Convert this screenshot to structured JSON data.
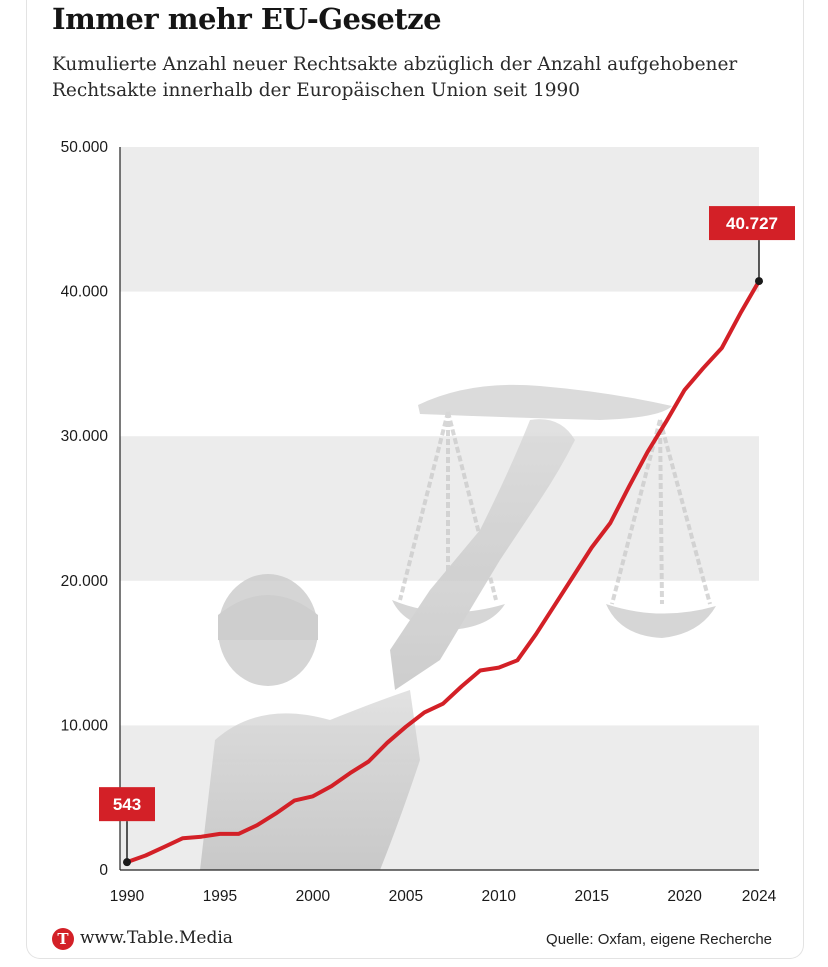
{
  "header": {
    "title": "Immer mehr EU-Gesetze",
    "subtitle": "Kumulierte Anzahl neuer Rechtsakte abzüglich der Anzahl aufgehobener Rechtsakte innerhalb der Europäischen Union seit 1990"
  },
  "footer": {
    "logo_letter": "T",
    "url": "www.Table.Media",
    "source": "Quelle: Oxfam, eigene Recherche"
  },
  "colors": {
    "line": "#d32027",
    "band": "#ececec",
    "axis": "#222222",
    "label_bg": "#d32027"
  },
  "chart_data": {
    "type": "line",
    "title": "Immer mehr EU-Gesetze",
    "xlabel": "",
    "ylabel": "",
    "xlim": [
      1990,
      2024
    ],
    "ylim": [
      0,
      50000
    ],
    "grid": "alternating horizontal bands",
    "x_ticks": [
      1990,
      1995,
      2000,
      2005,
      2010,
      2015,
      2020,
      2024
    ],
    "x_tick_labels": [
      "1990",
      "1995",
      "2000",
      "2005",
      "2010",
      "2015",
      "2020",
      "2024"
    ],
    "y_ticks": [
      0,
      10000,
      20000,
      30000,
      40000,
      50000
    ],
    "y_tick_labels": [
      "0",
      "10.000",
      "20.000",
      "30.000",
      "40.000",
      "50.000"
    ],
    "series": [
      {
        "x": [
          1990,
          1991,
          1992,
          1993,
          1994,
          1995,
          1996,
          1997,
          1998,
          1999,
          2000,
          2001,
          2002,
          2003,
          2004,
          2005,
          2006,
          2007,
          2008,
          2009,
          2010,
          2011,
          2012,
          2013,
          2014,
          2015,
          2016,
          2017,
          2018,
          2019,
          2020,
          2021,
          2022,
          2023,
          2024
        ],
        "values": [
          543,
          1000,
          1600,
          2200,
          2300,
          2500,
          2500,
          3100,
          3900,
          4800,
          5100,
          5800,
          6700,
          7500,
          8800,
          9900,
          10900,
          11500,
          12700,
          13800,
          14000,
          14500,
          16300,
          18300,
          20300,
          22300,
          24000,
          26500,
          28900,
          31000,
          33200,
          34700,
          36100,
          38500,
          40727
        ]
      }
    ],
    "annotations": [
      {
        "x": 1990,
        "y": 543,
        "text": "543"
      },
      {
        "x": 2024,
        "y": 40727,
        "text": "40.727"
      }
    ]
  }
}
